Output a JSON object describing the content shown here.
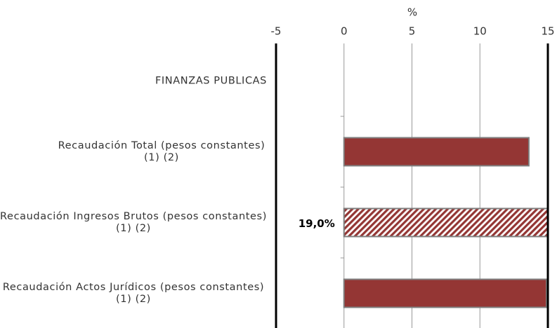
{
  "chart_data": {
    "type": "hbar",
    "xlabel": "%",
    "categories": [
      "FINANZAS PUBLICAS",
      "Recaudación Total (pesos constantes)  (1) (2)",
      "Recaudación Ingresos Brutos (pesos constantes)  (1) (2)",
      "Recaudación Actos Jurídicos (pesos constantes)  (1) (2)"
    ],
    "values": [
      null,
      13.6,
      19.0,
      14.9
    ],
    "value_labels": [
      null,
      null,
      "19,0%",
      null
    ],
    "patterns": [
      null,
      null,
      "hatch",
      null
    ],
    "color": "#943634",
    "xlim": [
      -5,
      15
    ],
    "xticks": [
      -5,
      0,
      5,
      10,
      15
    ],
    "grid": true
  }
}
